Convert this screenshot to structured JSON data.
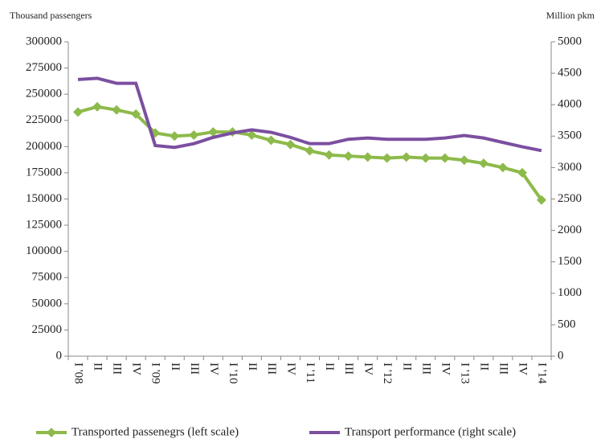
{
  "chart_data": {
    "type": "line",
    "y_label": "Thousand passengers",
    "y2_label": "Million pkm",
    "categories": [
      "I '08",
      "II",
      "III",
      "IV",
      "I '09",
      "II",
      "III",
      "IV",
      "I '10",
      "II",
      "III",
      "IV",
      "I '11",
      "II",
      "III",
      "IV",
      "I '12",
      "II",
      "III",
      "IV",
      "I '13",
      "II",
      "III",
      "IV",
      "I '14"
    ],
    "series": [
      {
        "name": "Transported passenegrs (left scale)",
        "color": "#8dba4a",
        "marker": "diamond",
        "values": [
          233000,
          238000,
          235000,
          231000,
          213000,
          210000,
          211000,
          214000,
          214000,
          211000,
          206000,
          202000,
          196000,
          192000,
          191000,
          190000,
          189000,
          190000,
          189000,
          189000,
          187000,
          184000,
          180000,
          175000,
          149000
        ]
      },
      {
        "name": "Transport performance (right scale)",
        "color": "#7b4fa0",
        "axis": "y2",
        "values": [
          4400,
          4420,
          4340,
          4340,
          3350,
          3320,
          3380,
          3480,
          3550,
          3600,
          3560,
          3480,
          3380,
          3380,
          3450,
          3470,
          3450,
          3450,
          3450,
          3470,
          3510,
          3470,
          3400,
          3330,
          3270
        ]
      }
    ],
    "ylim": [
      0,
      300000
    ],
    "yticks": [
      0,
      25000,
      50000,
      75000,
      100000,
      125000,
      150000,
      175000,
      200000,
      225000,
      250000,
      275000,
      300000
    ],
    "y2lim": [
      0,
      5000
    ],
    "y2ticks": [
      0,
      500,
      1000,
      1500,
      2000,
      2500,
      3000,
      3500,
      4000,
      4500,
      5000
    ],
    "legend": "bottom"
  }
}
